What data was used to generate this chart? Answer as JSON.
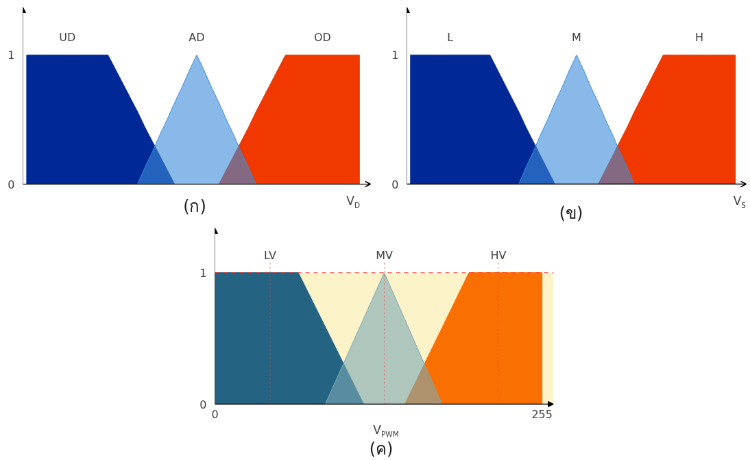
{
  "chart_data": [
    {
      "type": "area",
      "title": "(ก)",
      "xlabel": "V$_{D}$",
      "categories": [
        null,
        null,
        null,
        null,
        null,
        null,
        null,
        null,
        null,
        null,
        null,
        null,
        null,
        null,
        null,
        null,
        null,
        null,
        null,
        null,
        null,
        null,
        null,
        null,
        null,
        null,
        null,
        null,
        null,
        null,
        null,
        null,
        null,
        null,
        null,
        null,
        null,
        null,
        null,
        null,
        null,
        null,
        null,
        null,
        null,
        null,
        null
      ],
      "ylim": [
        0,
        1.37
      ],
      "yticks": [
        0,
        1
      ],
      "tick_labels": "y",
      "grid": false,
      "series": [
        {
          "name": "UD",
          "color": "#002896",
          "values": [
            1,
            1,
            1,
            1,
            1,
            1,
            1,
            1,
            1,
            1,
            1,
            1,
            0.89,
            0.78,
            0.67,
            0.56,
            0.44,
            0.33,
            0.22,
            0.11,
            0,
            null,
            null,
            null,
            null,
            null,
            null,
            null,
            null,
            null,
            null,
            null,
            null,
            null,
            null,
            null,
            null,
            null,
            null,
            null,
            null,
            null,
            null,
            null,
            null,
            null,
            null
          ]
        },
        {
          "name": "AD",
          "color": "#3a8ad9",
          "values": [
            null,
            null,
            null,
            null,
            null,
            null,
            null,
            null,
            null,
            null,
            null,
            null,
            null,
            null,
            null,
            0,
            0.13,
            0.25,
            0.38,
            0.5,
            0.63,
            0.75,
            0.88,
            1,
            0.88,
            0.75,
            0.63,
            0.5,
            0.38,
            0.25,
            0.13,
            0,
            null,
            null,
            null,
            null,
            null,
            null,
            null,
            null,
            null,
            null,
            null,
            null,
            null,
            null,
            null
          ]
        },
        {
          "name": "OD",
          "color": "#f03800",
          "values": [
            null,
            null,
            null,
            null,
            null,
            null,
            null,
            null,
            null,
            null,
            null,
            null,
            null,
            null,
            null,
            null,
            null,
            null,
            null,
            null,
            null,
            null,
            null,
            null,
            null,
            null,
            0,
            0.11,
            0.22,
            0.33,
            0.44,
            0.56,
            0.67,
            0.78,
            0.89,
            1,
            1,
            1,
            1,
            1,
            1,
            1,
            1,
            1,
            1,
            1,
            null
          ]
        }
      ]
    },
    {
      "type": "area",
      "title": "(ข)",
      "xlabel": "V$_{S}$",
      "categories": [
        null,
        null,
        null,
        null,
        null,
        null,
        null,
        null,
        null,
        null,
        null,
        null,
        null,
        null,
        null,
        null,
        null,
        null,
        null,
        null,
        null,
        null,
        null,
        null,
        null,
        null,
        null,
        null,
        null,
        null,
        null,
        null,
        null,
        null,
        null,
        null,
        null,
        null,
        null,
        null,
        null,
        null,
        null,
        null,
        null,
        null,
        null
      ],
      "ylim": [
        0,
        1.37
      ],
      "yticks": [
        0,
        1
      ],
      "tick_labels": "y",
      "grid": false,
      "series": [
        {
          "name": "L",
          "color": "#002896",
          "values": [
            1,
            1,
            1,
            1,
            1,
            1,
            1,
            1,
            1,
            1,
            1,
            1,
            0.89,
            0.78,
            0.67,
            0.56,
            0.44,
            0.33,
            0.22,
            0.11,
            0,
            null,
            null,
            null,
            null,
            null,
            null,
            null,
            null,
            null,
            null,
            null,
            null,
            null,
            null,
            null,
            null,
            null,
            null,
            null,
            null,
            null,
            null,
            null,
            null,
            null,
            null
          ]
        },
        {
          "name": "M",
          "color": "#3a8ad9",
          "values": [
            null,
            null,
            null,
            null,
            null,
            null,
            null,
            null,
            null,
            null,
            null,
            null,
            null,
            null,
            null,
            0,
            0.13,
            0.25,
            0.38,
            0.5,
            0.63,
            0.75,
            0.88,
            1,
            0.88,
            0.75,
            0.63,
            0.5,
            0.38,
            0.25,
            0.13,
            0,
            null,
            null,
            null,
            null,
            null,
            null,
            null,
            null,
            null,
            null,
            null,
            null,
            null,
            null,
            null
          ]
        },
        {
          "name": "H",
          "color": "#f03800",
          "values": [
            null,
            null,
            null,
            null,
            null,
            null,
            null,
            null,
            null,
            null,
            null,
            null,
            null,
            null,
            null,
            null,
            null,
            null,
            null,
            null,
            null,
            null,
            null,
            null,
            null,
            null,
            0,
            0.11,
            0.22,
            0.33,
            0.44,
            0.56,
            0.67,
            0.78,
            0.89,
            1,
            1,
            1,
            1,
            1,
            1,
            1,
            1,
            1,
            1,
            1,
            null
          ]
        }
      ]
    },
    {
      "type": "area",
      "title": "(ค)",
      "xlabel": "V$_{PWM}$",
      "xlim": [
        0,
        264
      ],
      "xticks": [
        0,
        255
      ],
      "ylim": [
        0,
        1.34
      ],
      "yticks": [
        0,
        1
      ],
      "grid": false,
      "bands": [
        {
          "axis": "y",
          "from": 0,
          "to": 1,
          "color": "#fcf3c9"
        }
      ],
      "ref_lines": [
        {
          "axis": "y",
          "value": 1,
          "color": "#ff3b3b",
          "line_style": "dashed"
        },
        {
          "axis": "x",
          "value": 43,
          "label": "LV",
          "color": "#ff3b3b",
          "line_style": "dotted"
        },
        {
          "axis": "x",
          "value": 132,
          "label": "MV",
          "color": "#ff3b3b",
          "line_style": "dotted"
        },
        {
          "axis": "x",
          "value": 221,
          "label": "HV",
          "color": "#ff3b3b",
          "line_style": "dotted"
        }
      ],
      "series": [
        {
          "color": "#246482",
          "x": [
            0,
            65,
            116
          ],
          "values": [
            1,
            1,
            0
          ]
        },
        {
          "color": "#7ca8b5",
          "x": [
            86,
            132,
            177
          ],
          "values": [
            0,
            1,
            0
          ]
        },
        {
          "color": "#f97000",
          "x": [
            148,
            198,
            255
          ],
          "values": [
            0,
            1,
            1
          ]
        }
      ]
    }
  ]
}
